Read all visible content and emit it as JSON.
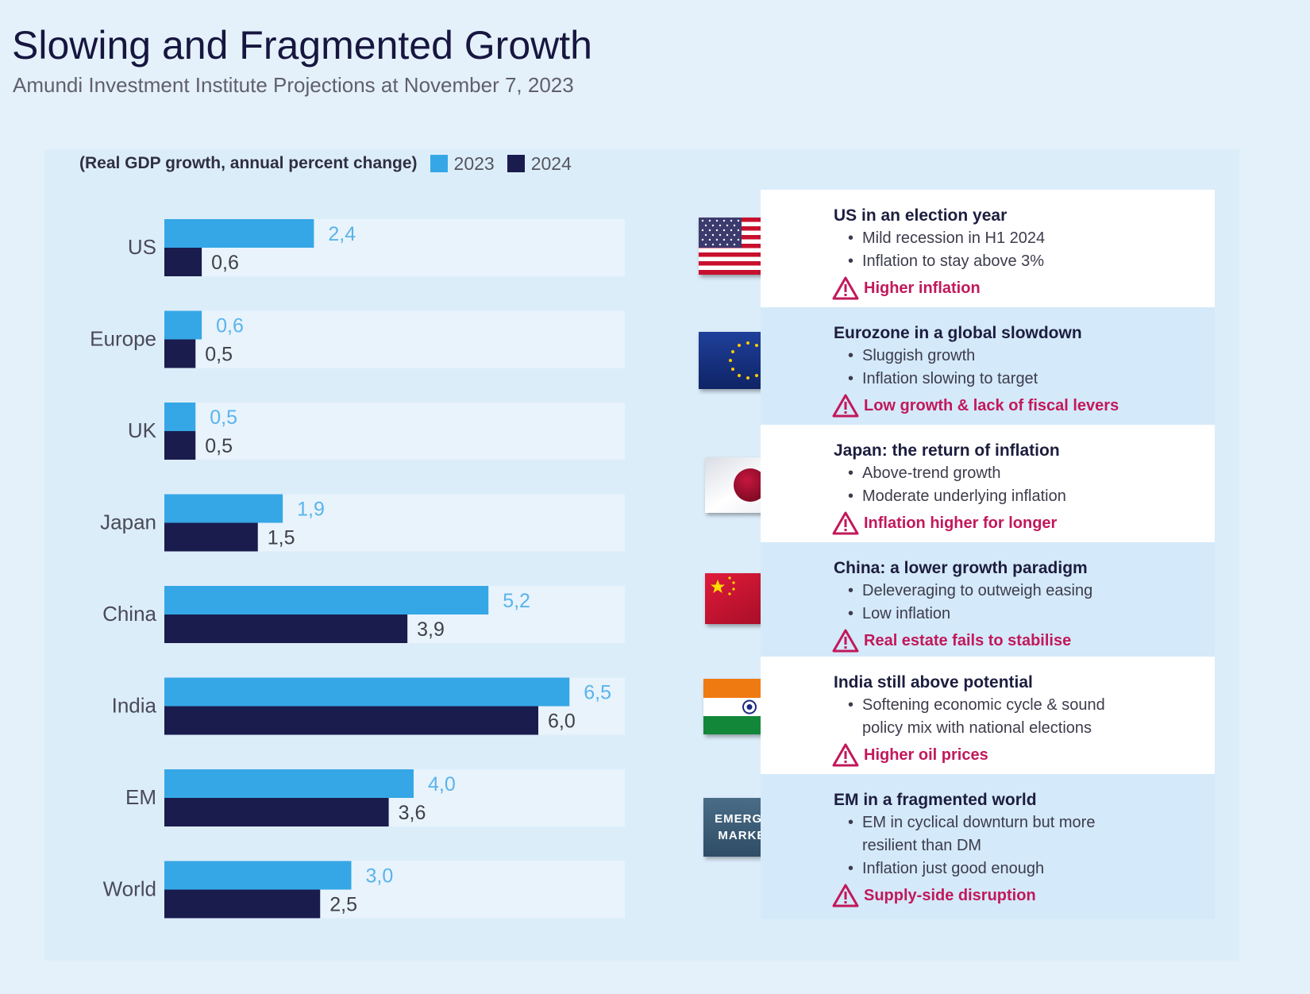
{
  "header": {
    "title": "Slowing and Fragmented Growth",
    "subtitle": "Amundi Investment Institute Projections at November 7, 2023"
  },
  "legend": {
    "note": "(Real GDP growth, annual percent change)",
    "series1": "2023",
    "series2": "2024"
  },
  "colors": {
    "series_2023": "#36a7e6",
    "series_2024": "#1a1c4d",
    "label_2023": "#5ab4ea",
    "label_2024": "#404048",
    "risk": "#c2185b"
  },
  "chart_data": {
    "type": "bar",
    "orientation": "horizontal",
    "title": "(Real GDP growth, annual percent change)",
    "categories": [
      "US",
      "Europe",
      "UK",
      "Japan",
      "China",
      "India",
      "EM",
      "World"
    ],
    "series": [
      {
        "name": "2023",
        "values": [
          2.4,
          0.6,
          0.5,
          1.9,
          5.2,
          6.5,
          4.0,
          3.0
        ],
        "labels": [
          "2,4",
          "0,6",
          "0,5",
          "1,9",
          "5,2",
          "6,5",
          "4,0",
          "3,0"
        ]
      },
      {
        "name": "2024",
        "values": [
          0.6,
          0.5,
          0.5,
          1.5,
          3.9,
          6.0,
          3.6,
          2.5
        ],
        "labels": [
          "0,6",
          "0,5",
          "0,5",
          "1,5",
          "3,9",
          "6,0",
          "3,6",
          "2,5"
        ]
      }
    ],
    "xlim": [
      0,
      7
    ],
    "grid": false,
    "legend": "top-left"
  },
  "cards": [
    {
      "flag": "us-flag",
      "title": "US in an election year",
      "bullets": [
        "Mild recession in H1 2024",
        "Inflation to stay above 3%"
      ],
      "risk": "Higher inflation"
    },
    {
      "flag": "eu-flag",
      "title": "Eurozone in a global slowdown",
      "bullets": [
        "Sluggish growth",
        "Inflation slowing to target"
      ],
      "risk": "Low growth & lack of fiscal levers"
    },
    {
      "flag": "japan-flag",
      "title": "Japan: the return of inflation",
      "bullets": [
        "Above-trend growth",
        "Moderate underlying inflation"
      ],
      "risk": "Inflation higher for longer"
    },
    {
      "flag": "china-flag",
      "title": "China: a lower growth paradigm",
      "bullets": [
        "Deleveraging to outweigh easing",
        "Low inflation"
      ],
      "risk": "Real estate fails to stabilise"
    },
    {
      "flag": "india-flag",
      "title": "India still above potential",
      "bullets": [
        "Softening economic cycle & sound",
        "policy mix with national elections"
      ],
      "risk": "Higher oil prices"
    },
    {
      "flag": "em-badge",
      "title": "EM in a fragmented world",
      "bullets": [
        "EM in cyclical downturn but more",
        "resilient than DM",
        "Inflation just good enough"
      ],
      "risk": "Supply-side disruption"
    }
  ],
  "em_badge": {
    "line1": "EMERGING",
    "line2": "MARKETS"
  }
}
